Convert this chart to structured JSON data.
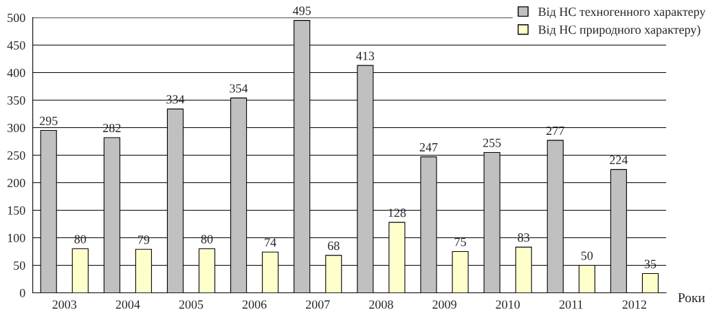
{
  "chart_data": {
    "type": "bar",
    "xlabel": "Роки",
    "categories": [
      "2003",
      "2004",
      "2005",
      "2006",
      "2007",
      "2008",
      "2009",
      "2010",
      "2011",
      "2012"
    ],
    "series": [
      {
        "name": "Від НС техногенного характеру",
        "color": "#c0c0c0",
        "values": [
          295,
          282,
          334,
          354,
          495,
          413,
          247,
          255,
          277,
          224
        ]
      },
      {
        "name": "Від НС природного характеру)",
        "color": "#ffffcc",
        "values": [
          80,
          79,
          80,
          74,
          68,
          128,
          75,
          83,
          50,
          35
        ]
      }
    ],
    "ylim": [
      0,
      500
    ],
    "yticks": [
      0,
      50,
      100,
      150,
      200,
      250,
      300,
      350,
      400,
      450,
      500
    ],
    "grid": "y",
    "legend": "top right",
    "data_labels": true
  }
}
